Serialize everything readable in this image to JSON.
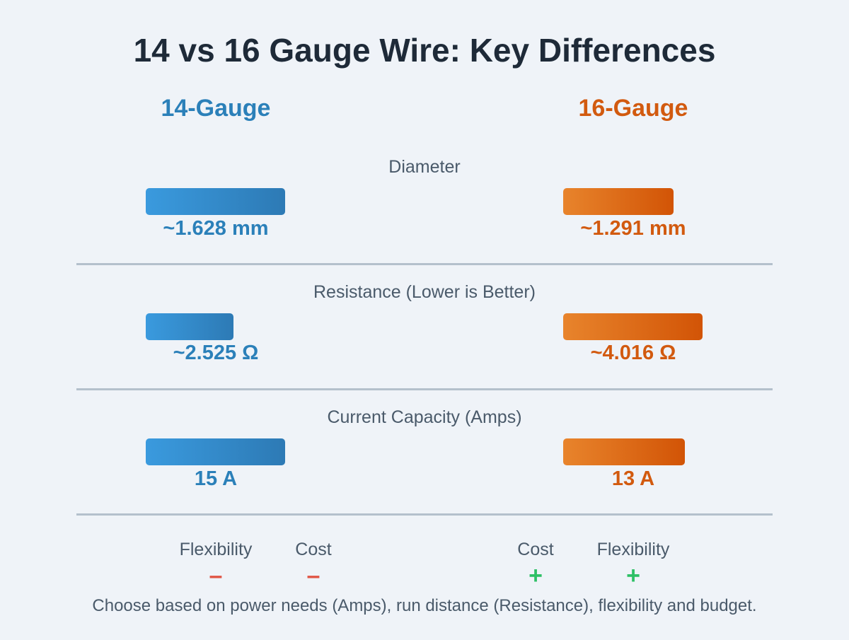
{
  "title": "14 vs 16 Gauge Wire: Key Differences",
  "columns": {
    "left": {
      "label": "14-Gauge",
      "color": "#2b80b9"
    },
    "right": {
      "label": "16-Gauge",
      "color": "#d25a0f"
    }
  },
  "rows": [
    {
      "label": "Diameter",
      "left": {
        "value": 1.628,
        "text": "~1.628 mm"
      },
      "right": {
        "value": 1.291,
        "text": "~1.291 mm"
      }
    },
    {
      "label": "Resistance (Lower is Better)",
      "left": {
        "value": 2.525,
        "text": "~2.525 Ω"
      },
      "right": {
        "value": 4.016,
        "text": "~4.016 Ω"
      }
    },
    {
      "label": "Current Capacity (Amps)",
      "left": {
        "value": 15,
        "text": "15 A"
      },
      "right": {
        "value": 13,
        "text": "13 A"
      }
    }
  ],
  "traits": {
    "left": [
      {
        "label": "Flexibility",
        "sign": "–",
        "kind": "minus"
      },
      {
        "label": "Cost",
        "sign": "–",
        "kind": "minus"
      }
    ],
    "right": [
      {
        "label": "Cost",
        "sign": "+",
        "kind": "plus"
      },
      {
        "label": "Flexibility",
        "sign": "+",
        "kind": "plus"
      }
    ]
  },
  "footer": "Choose based on power needs (Amps), run distance (Resistance), flexibility and budget."
}
